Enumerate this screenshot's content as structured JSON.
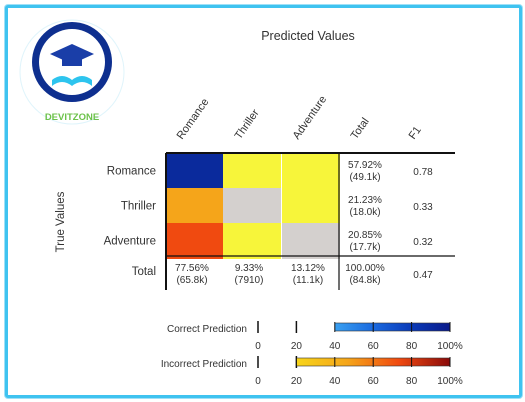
{
  "logo": {
    "brand": "DEVITZONE"
  },
  "chart_data": {
    "type": "heatmap",
    "title": "Predicted Values",
    "ylabel": "True Values",
    "columns": [
      "Romance",
      "Thriller",
      "Adventure"
    ],
    "rows": [
      "Romance",
      "Thriller",
      "Adventure"
    ],
    "extra_column_headers": [
      "Total",
      "F1"
    ],
    "cells": [
      [
        "#0a2a9c",
        "#f7f53a",
        "#f7f53a"
      ],
      [
        "#f5a51a",
        "#d4d0ce",
        "#f7f53a"
      ],
      [
        "#f04a10",
        "#f7f53a",
        "#d4d0ce"
      ]
    ],
    "row_totals": [
      {
        "pct": "57.92%",
        "count": "(49.1k)"
      },
      {
        "pct": "21.23%",
        "count": "(18.0k)"
      },
      {
        "pct": "20.85%",
        "count": "(17.7k)"
      }
    ],
    "f1": [
      "0.78",
      "0.33",
      "0.32",
      "0.47"
    ],
    "total_row_label": "Total",
    "column_totals": [
      {
        "pct": "77.56%",
        "count": "(65.8k)"
      },
      {
        "pct": "9.33%",
        "count": "(7910)"
      },
      {
        "pct": "13.12%",
        "count": "(11.1k)"
      }
    ],
    "grand_total": {
      "pct": "100.00%",
      "count": "(84.8k)"
    },
    "legend": [
      {
        "label": "Correct Prediction",
        "stops": [
          "#d4d0ce",
          "#d4d0ce",
          "#3aa0f0",
          "#1a6ae0",
          "#0a3ab8",
          "#0a1a8a"
        ]
      },
      {
        "label": "Incorrect Prediction",
        "stops": [
          "#d4d0ce",
          "#f7f53a",
          "#f7d51a",
          "#f5a51a",
          "#f04a10",
          "#8a0a0a"
        ]
      }
    ],
    "legend_ticks": [
      "0",
      "20",
      "40",
      "60",
      "80",
      "100%"
    ]
  }
}
